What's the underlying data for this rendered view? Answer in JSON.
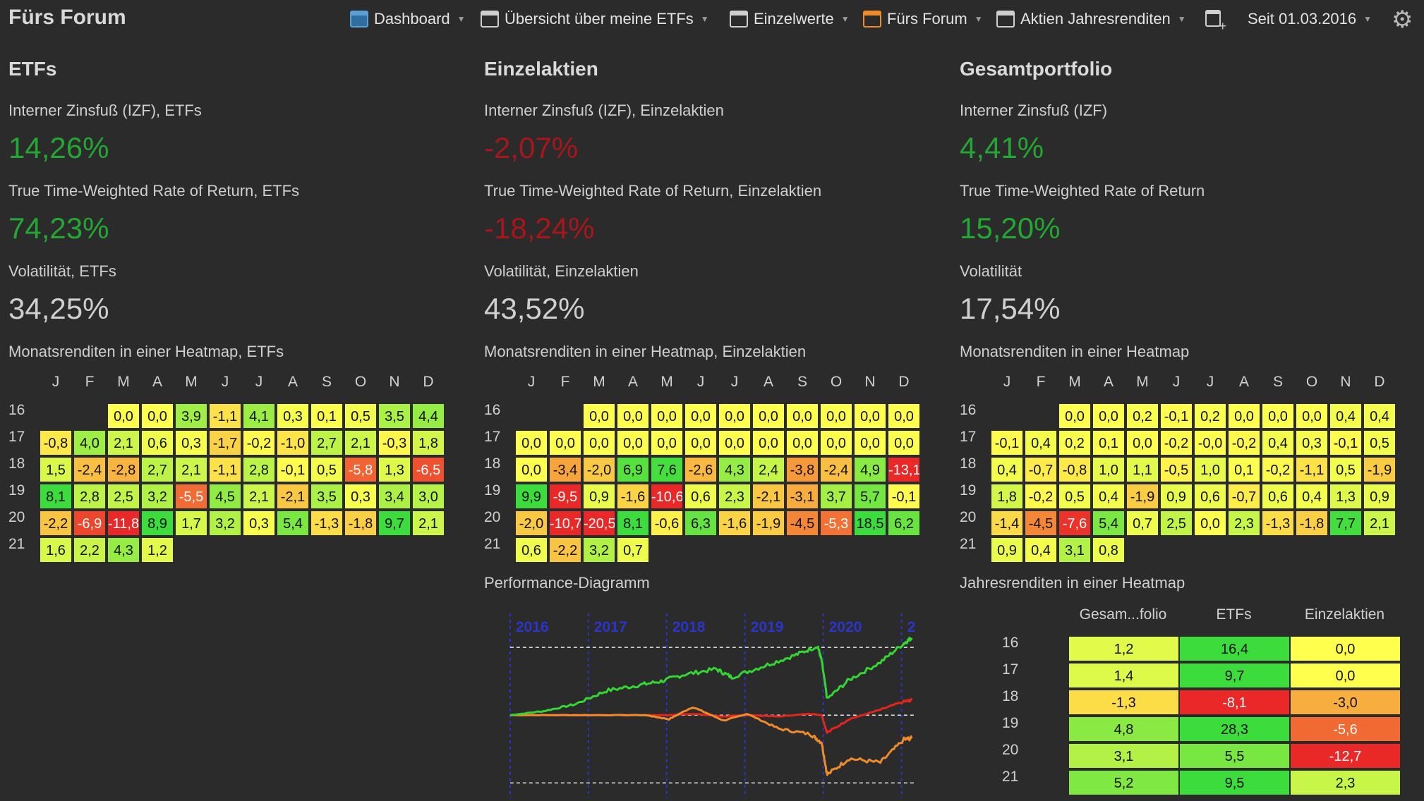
{
  "app_title": "Fürs Forum",
  "nav": {
    "tabs": [
      {
        "label": "Dashboard",
        "icon": "dashboard-tab-icon"
      },
      {
        "label": "Übersicht über meine ETFs",
        "icon": "tab-icon"
      },
      {
        "label": "Einzelwerte",
        "icon": "tab-icon"
      },
      {
        "label": "Fürs Forum",
        "icon": "tab-icon-orange"
      },
      {
        "label": "Aktien Jahresrenditen",
        "icon": "tab-icon"
      }
    ],
    "period": "Seit 01.03.2016"
  },
  "months": [
    "J",
    "F",
    "M",
    "A",
    "M",
    "J",
    "J",
    "A",
    "S",
    "O",
    "N",
    "D"
  ],
  "years": [
    "16",
    "17",
    "18",
    "19",
    "20",
    "21"
  ],
  "columns": [
    {
      "heading": "ETFs",
      "izf_label": "Interner Zinsfuß (IZF), ETFs",
      "izf_value": "14,26%",
      "ttwror_label": "True Time-Weighted Rate of Return, ETFs",
      "ttwror_value": "74,23%",
      "vol_label": "Volatilität, ETFs",
      "vol_value": "34,25%",
      "heatmap_label": "Monatsrenditen in einer Heatmap, ETFs",
      "heatmap": [
        [
          "",
          "",
          "0,0",
          "0,0",
          "3,9",
          "-1,1",
          "4,1",
          "0,3",
          "0,1",
          "0,5",
          "3,5",
          "4,4"
        ],
        [
          "-0,8",
          "4,0",
          "2,1",
          "0,6",
          "0,3",
          "-1,7",
          "-0,2",
          "-1,0",
          "2,7",
          "2,1",
          "-0,3",
          "1,8"
        ],
        [
          "1,5",
          "-2,4",
          "-2,8",
          "2,7",
          "2,1",
          "-1,1",
          "2,8",
          "-0,1",
          "0,5",
          "-5,8",
          "1,3",
          "-6,5"
        ],
        [
          "8,1",
          "2,8",
          "2,5",
          "3,2",
          "-5,5",
          "4,5",
          "2,1",
          "-2,1",
          "3,5",
          "0,3",
          "3,4",
          "3,0"
        ],
        [
          "-2,2",
          "-6,9",
          "-11,8",
          "8,9",
          "1,7",
          "3,2",
          "0,3",
          "5,4",
          "-1,3",
          "-1,8",
          "9,7",
          "2,1"
        ],
        [
          "1,6",
          "2,2",
          "4,3",
          "1,2",
          "",
          "",
          "",
          "",
          "",
          "",
          "",
          ""
        ]
      ]
    },
    {
      "heading": "Einzelaktien",
      "izf_label": "Interner Zinsfuß (IZF), Einzelaktien",
      "izf_value": "-2,07%",
      "ttwror_label": "True Time-Weighted Rate of Return, Einzelaktien",
      "ttwror_value": "-18,24%",
      "vol_label": "Volatilität, Einzelaktien",
      "vol_value": "43,52%",
      "heatmap_label": "Monatsrenditen in einer Heatmap, Einzelaktien",
      "heatmap": [
        [
          "",
          "",
          "0,0",
          "0,0",
          "0,0",
          "0,0",
          "0,0",
          "0,0",
          "0,0",
          "0,0",
          "0,0",
          "0,0"
        ],
        [
          "0,0",
          "0,0",
          "0,0",
          "0,0",
          "0,0",
          "0,0",
          "0,0",
          "0,0",
          "0,0",
          "0,0",
          "0,0",
          "0,0"
        ],
        [
          "0,0",
          "-3,4",
          "-2,0",
          "6,9",
          "7,6",
          "-2,6",
          "4,3",
          "2,4",
          "-3,8",
          "-2,4",
          "4,9",
          "-13,1"
        ],
        [
          "9,9",
          "-9,5",
          "0,9",
          "-1,6",
          "-10,6",
          "0,6",
          "2,3",
          "-2,1",
          "-3,1",
          "3,7",
          "5,7",
          "-0,1"
        ],
        [
          "-2,0",
          "-10,7",
          "-20,5",
          "8,1",
          "-0,6",
          "6,3",
          "-1,6",
          "-1,9",
          "-4,5",
          "-5,3",
          "18,5",
          "6,2"
        ],
        [
          "0,6",
          "-2,2",
          "3,2",
          "0,7",
          "",
          "",
          "",
          "",
          "",
          "",
          "",
          ""
        ]
      ],
      "perf_label": "Performance-Diagramm"
    },
    {
      "heading": "Gesamtportfolio",
      "izf_label": "Interner Zinsfuß (IZF)",
      "izf_value": "4,41%",
      "ttwror_label": "True Time-Weighted Rate of Return",
      "ttwror_value": "15,20%",
      "vol_label": "Volatilität",
      "vol_value": "17,54%",
      "heatmap_label": "Monatsrenditen in einer Heatmap",
      "heatmap": [
        [
          "",
          "",
          "0,0",
          "0,0",
          "0,2",
          "-0,1",
          "0,2",
          "0,0",
          "0,0",
          "0,0",
          "0,4",
          "0,4"
        ],
        [
          "-0,1",
          "0,4",
          "0,2",
          "0,1",
          "0,0",
          "-0,2",
          "-0,0",
          "-0,2",
          "0,4",
          "0,3",
          "-0,1",
          "0,5"
        ],
        [
          "0,4",
          "-0,7",
          "-0,8",
          "1,0",
          "1,1",
          "-0,5",
          "1,0",
          "0,1",
          "-0,2",
          "-1,1",
          "0,5",
          "-1,9"
        ],
        [
          "1,8",
          "-0,2",
          "0,5",
          "0,4",
          "-1,9",
          "0,9",
          "0,6",
          "-0,7",
          "0,6",
          "0,4",
          "1,3",
          "0,9"
        ],
        [
          "-1,4",
          "-4,5",
          "-7,6",
          "5,4",
          "0,7",
          "2,5",
          "0,0",
          "2,3",
          "-1,3",
          "-1,8",
          "7,7",
          "2,1"
        ],
        [
          "0,9",
          "0,4",
          "3,1",
          "0,8",
          "",
          "",
          "",
          "",
          "",
          "",
          "",
          ""
        ]
      ],
      "yearly_label": "Jahresrenditen in einer Heatmap",
      "yearly_headers": [
        "Gesam...folio",
        "ETFs",
        "Einzelaktien"
      ],
      "yearly": [
        [
          "1,2",
          "16,4",
          "0,0"
        ],
        [
          "1,4",
          "9,7",
          "0,0"
        ],
        [
          "-1,3",
          "-8,1",
          "-3,0"
        ],
        [
          "4,8",
          "28,3",
          "-5,6"
        ],
        [
          "3,1",
          "5,5",
          "-12,7"
        ],
        [
          "5,2",
          "9,5",
          "2,3"
        ]
      ]
    }
  ],
  "colors": {
    "background": "#2b2b2b",
    "positive": "#22a832",
    "negative": "#a8151a",
    "etf_line": "#33d633",
    "stock_line": "#f08b2c",
    "portfolio_line": "#e0261e",
    "year_marker": "#2b35c9"
  },
  "chart_data": {
    "type": "line",
    "title": "Performance-Diagramm",
    "x_ticks": [
      "2016",
      "2017",
      "2018",
      "2019",
      "2020",
      "2"
    ],
    "series": [],
    "series_unlabeled": [
      {
        "color": "etf_line",
        "x": [
          2016.17,
          2016.6,
          2017.0,
          2017.4,
          2017.8,
          2018.1,
          2018.4,
          2018.8,
          2019.0,
          2019.4,
          2019.8,
          2020.1,
          2020.15,
          2020.22,
          2020.5,
          2020.9,
          2021.2,
          2021.3
        ],
        "y": [
          0,
          3,
          8,
          18,
          22,
          25,
          30,
          34,
          28,
          36,
          44,
          51,
          40,
          12,
          26,
          39,
          53,
          57
        ]
      },
      {
        "color": "stock_line",
        "x": [
          2016.17,
          2017.0,
          2017.9,
          2018.2,
          2018.5,
          2018.9,
          2019.2,
          2019.6,
          2020.0,
          2020.15,
          2020.22,
          2020.5,
          2020.9,
          2021.2,
          2021.3
        ],
        "y": [
          0,
          0,
          0,
          -3,
          6,
          -4,
          1,
          -10,
          -14,
          -20,
          -44,
          -32,
          -35,
          -18,
          -17
        ]
      },
      {
        "color": "portfolio_line",
        "x": [
          2016.17,
          2017.0,
          2017.9,
          2018.2,
          2018.5,
          2018.9,
          2019.2,
          2019.6,
          2020.0,
          2020.15,
          2020.22,
          2020.5,
          2020.9,
          2021.2,
          2021.3
        ],
        "y": [
          0,
          0,
          0,
          0,
          1,
          -1,
          0,
          -1,
          1,
          0,
          -13,
          -3,
          4,
          10,
          11
        ]
      }
    ]
  }
}
